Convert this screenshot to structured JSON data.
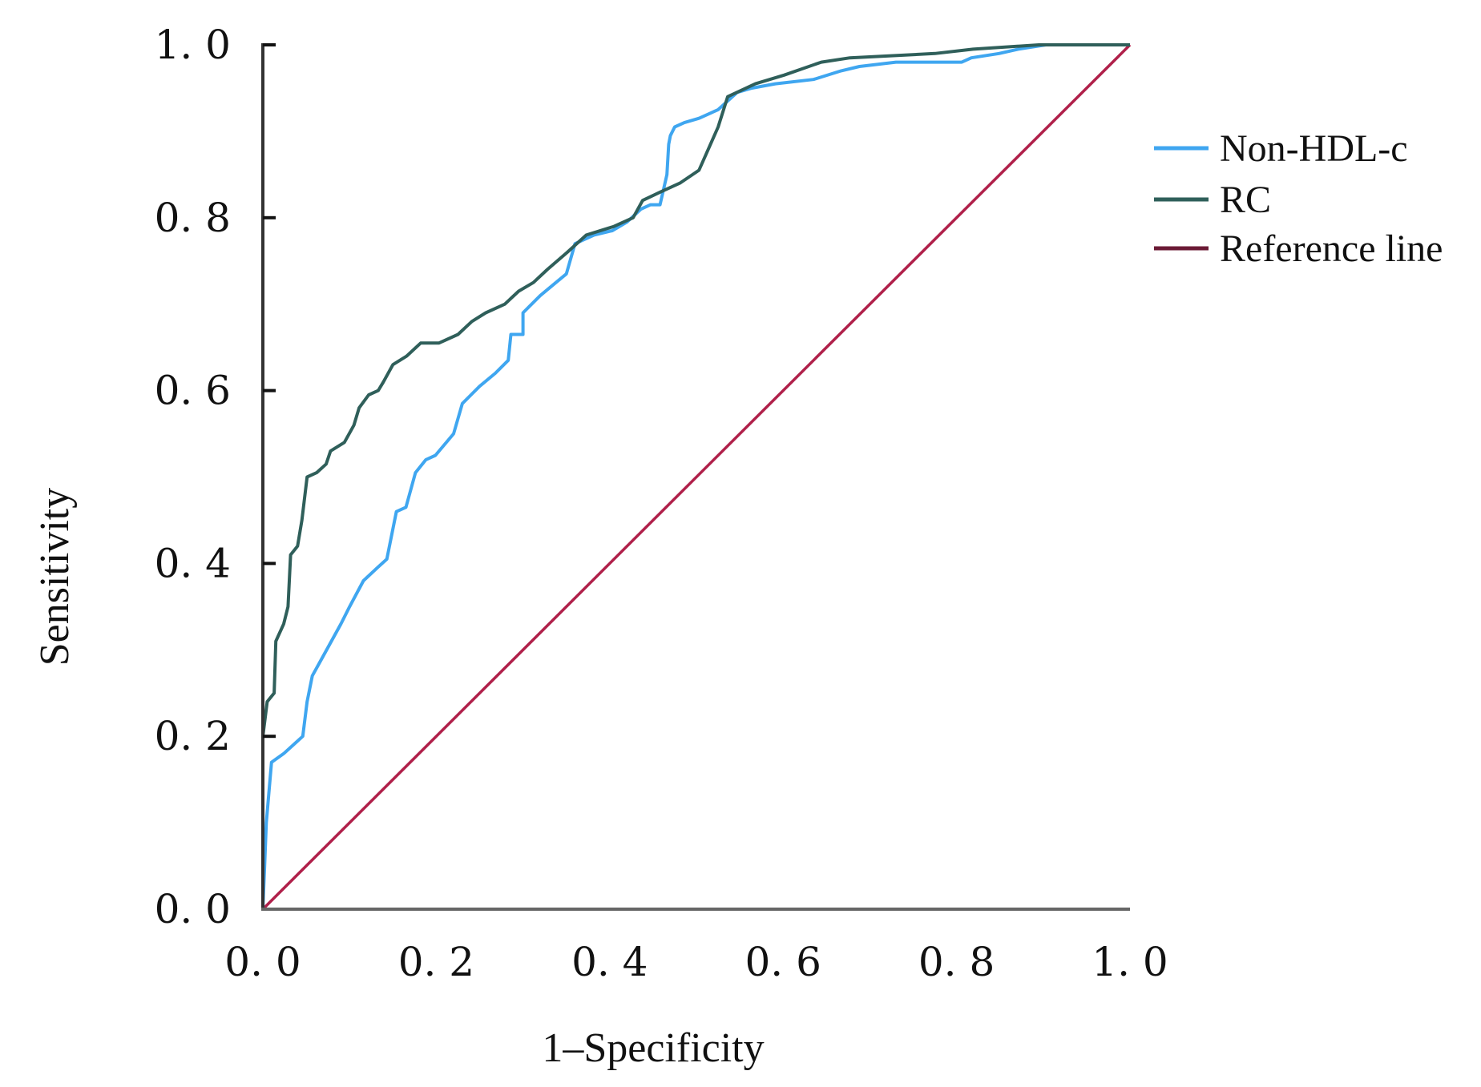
{
  "chart_data": {
    "type": "line",
    "title": "",
    "xlabel": "1–Specificity",
    "ylabel": "Sensitivity",
    "xlim": [
      0,
      1
    ],
    "ylim": [
      0,
      1
    ],
    "grid": false,
    "legend_position": "right",
    "x_ticks": [
      0,
      0.2,
      0.4,
      0.6,
      0.8,
      1.0
    ],
    "y_ticks": [
      0,
      0.2,
      0.4,
      0.6,
      0.8,
      1.0
    ],
    "x_tick_labels": [
      "0. 0",
      "0. 2",
      "0. 4",
      "0. 6",
      "0. 8",
      "1. 0"
    ],
    "y_tick_labels": [
      "0. 0",
      "0. 2",
      "0. 4",
      "0. 6",
      "0. 8",
      "1. 0"
    ],
    "series": [
      {
        "name": "Non-HDL-c",
        "color": "#3fa6f0",
        "x": [
          0,
          0.002,
          0.004,
          0.01,
          0.024,
          0.035,
          0.046,
          0.051,
          0.057,
          0.068,
          0.079,
          0.09,
          0.1,
          0.116,
          0.132,
          0.143,
          0.154,
          0.165,
          0.176,
          0.188,
          0.199,
          0.22,
          0.23,
          0.24,
          0.25,
          0.268,
          0.283,
          0.286,
          0.3,
          0.3,
          0.32,
          0.338,
          0.35,
          0.36,
          0.382,
          0.403,
          0.42,
          0.436,
          0.447,
          0.458,
          0.466,
          0.468,
          0.47,
          0.475,
          0.486,
          0.503,
          0.525,
          0.547,
          0.564,
          0.591,
          0.635,
          0.667,
          0.688,
          0.73,
          0.806,
          0.817,
          0.849,
          0.871,
          0.903,
          1.0
        ],
        "y": [
          0,
          0.05,
          0.1,
          0.17,
          0.18,
          0.19,
          0.2,
          0.24,
          0.27,
          0.29,
          0.31,
          0.33,
          0.35,
          0.38,
          0.395,
          0.405,
          0.46,
          0.465,
          0.505,
          0.52,
          0.525,
          0.55,
          0.585,
          0.595,
          0.605,
          0.62,
          0.635,
          0.665,
          0.665,
          0.69,
          0.71,
          0.725,
          0.735,
          0.77,
          0.78,
          0.785,
          0.795,
          0.81,
          0.815,
          0.815,
          0.85,
          0.885,
          0.895,
          0.905,
          0.91,
          0.915,
          0.925,
          0.945,
          0.95,
          0.955,
          0.96,
          0.97,
          0.975,
          0.98,
          0.98,
          0.985,
          0.99,
          0.995,
          1.0,
          1.0
        ]
      },
      {
        "name": "RC",
        "color": "#2f5f5a",
        "x": [
          0,
          0,
          0.005,
          0.013,
          0.015,
          0.024,
          0.029,
          0.032,
          0.04,
          0.045,
          0.051,
          0.062,
          0.073,
          0.078,
          0.094,
          0.105,
          0.111,
          0.122,
          0.133,
          0.139,
          0.15,
          0.166,
          0.182,
          0.203,
          0.225,
          0.241,
          0.257,
          0.279,
          0.295,
          0.312,
          0.328,
          0.351,
          0.373,
          0.405,
          0.427,
          0.438,
          0.459,
          0.481,
          0.503,
          0.525,
          0.536,
          0.568,
          0.601,
          0.644,
          0.677,
          0.775,
          0.819,
          0.895,
          1.0
        ],
        "y": [
          0,
          0.2,
          0.24,
          0.25,
          0.31,
          0.33,
          0.35,
          0.41,
          0.42,
          0.45,
          0.5,
          0.505,
          0.515,
          0.53,
          0.54,
          0.56,
          0.58,
          0.595,
          0.6,
          0.61,
          0.63,
          0.64,
          0.655,
          0.655,
          0.665,
          0.68,
          0.69,
          0.7,
          0.715,
          0.725,
          0.74,
          0.76,
          0.78,
          0.79,
          0.8,
          0.82,
          0.83,
          0.84,
          0.855,
          0.905,
          0.94,
          0.955,
          0.965,
          0.98,
          0.985,
          0.99,
          0.995,
          1.0,
          1.0
        ]
      },
      {
        "name": "Reference line",
        "color": "#b0204a",
        "legend_color": "#6b1a35",
        "x": [
          0,
          1
        ],
        "y": [
          0,
          1
        ]
      }
    ]
  }
}
